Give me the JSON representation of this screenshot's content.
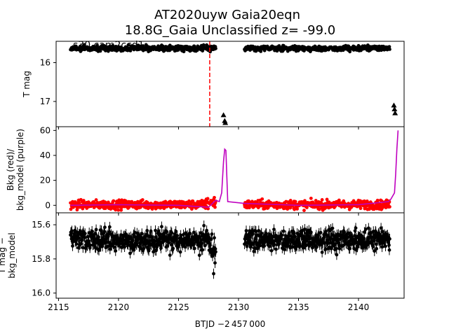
{
  "chart_data": {
    "type": "scatter",
    "title": "AT2020uyw  Gaia20eqn",
    "subtitle": "18.8G_Gaia Unclassified z= -99.0",
    "annotation": "s30 cam2ccd1",
    "xlabel": "BTJD −2 457 000",
    "xlim": [
      2114.8,
      2143.8
    ],
    "xticks": [
      2115,
      2120,
      2125,
      2130,
      2135,
      2140
    ],
    "panels": [
      {
        "ylabel": "T mag",
        "ylim": [
          17.65,
          15.45
        ],
        "inverted": true,
        "yticks": [
          16,
          17
        ],
        "series": [
          {
            "kind": "points",
            "color": "#000000",
            "segments": [
              [
                2116.0,
                2128.1
              ],
              [
                2130.5,
                2142.6
              ]
            ],
            "level": 15.63,
            "scatter": 0.05
          },
          {
            "kind": "upper_limits",
            "color": "#000000",
            "x": [
              2128.75,
              2128.85,
              2128.9,
              2142.95,
              2143.0,
              2143.05
            ],
            "y": [
              17.35,
              17.5,
              17.55,
              17.1,
              17.2,
              17.3
            ]
          }
        ],
        "vline": {
          "x": 2127.6,
          "color": "#ff0000",
          "style": "dashed"
        }
      },
      {
        "ylabel": "Bkg (red)/\nbkg_model (purple)",
        "ylim": [
          -6,
          63
        ],
        "yticks": [
          0,
          20,
          40,
          60
        ],
        "series": [
          {
            "name": "Bkg",
            "kind": "points",
            "color": "#ff0000",
            "segments": [
              [
                2116.0,
                2128.1
              ],
              [
                2130.5,
                2142.6
              ]
            ],
            "level": 0.5,
            "scatter": 2.5
          },
          {
            "name": "bkg_model",
            "kind": "line",
            "color": "#bf00bf",
            "x": [
              2116.0,
              2120.0,
              2125.0,
              2127.5,
              2128.1,
              2128.4,
              2128.6,
              2128.75,
              2128.85,
              2128.95,
              2129.1,
              2130.5,
              2135.0,
              2140.0,
              2142.5,
              2142.7,
              2143.0,
              2143.1,
              2143.2,
              2143.3
            ],
            "y": [
              0.0,
              0.5,
              0.0,
              -1.5,
              4.0,
              3.0,
              10.0,
              35.0,
              45.0,
              44.0,
              3.0,
              1.5,
              0.0,
              0.5,
              3.0,
              5.0,
              10.0,
              25.0,
              45.0,
              60.0
            ]
          }
        ]
      },
      {
        "ylabel": "T mag −\nbkg_model",
        "ylim": [
          16.03,
          15.53
        ],
        "inverted": true,
        "yticks": [
          15.6,
          15.8,
          16.0
        ],
        "ytick_labels": [
          "15.6",
          "15.8",
          "16.0"
        ],
        "series": [
          {
            "kind": "points_with_errorbars",
            "color": "#000000",
            "segments": [
              [
                2116.0,
                2128.1
              ],
              [
                2130.5,
                2142.6
              ]
            ],
            "level": 15.69,
            "scatter": 0.045
          }
        ]
      }
    ]
  }
}
